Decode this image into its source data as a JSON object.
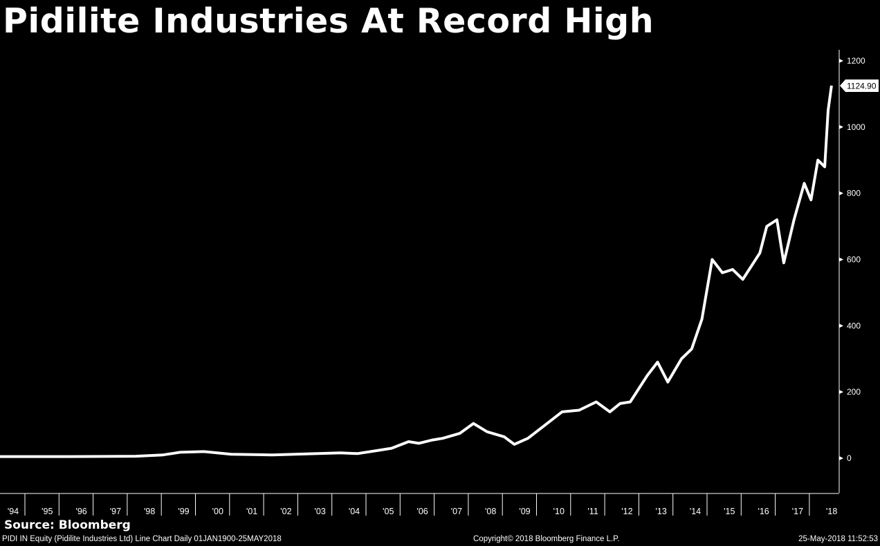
{
  "title": "Pidilite Industries At Record High",
  "source": "Source: Bloomberg",
  "footer": {
    "left": "PIDI IN Equity (Pidilite Industries Ltd) Line Chart  Daily 01JAN1900-25MAY2018",
    "center": "Copyright© 2018 Bloomberg Finance L.P.",
    "right": "25-May-2018 11:52:53"
  },
  "chart_data": {
    "type": "line",
    "title": "Pidilite Industries At Record High",
    "xlabel": "",
    "ylabel": "",
    "ylim": [
      -100,
      1250
    ],
    "yticks": [
      0,
      200,
      400,
      600,
      800,
      1000,
      1200
    ],
    "xticks": [
      "'94",
      "'95",
      "'96",
      "'97",
      "'98",
      "'99",
      "'00",
      "'01",
      "'02",
      "'03",
      "'04",
      "'05",
      "'06",
      "'07",
      "'08",
      "'09",
      "'10",
      "'11",
      "'12",
      "'13",
      "'14",
      "'15",
      "'16",
      "'17",
      "'18"
    ],
    "last_value_label": "1124.90",
    "line_color": "#ffffff",
    "series": [
      {
        "name": "PIDI IN Equity",
        "x": [
          1994,
          1996,
          1998,
          1998.8,
          1999.3,
          2000,
          2000.8,
          2002,
          2003,
          2004,
          2004.5,
          2005,
          2005.5,
          2006,
          2006.3,
          2006.7,
          2007,
          2007.5,
          2007.9,
          2008.3,
          2008.8,
          2009.1,
          2009.5,
          2010,
          2010.5,
          2011,
          2011.5,
          2011.9,
          2012.2,
          2012.5,
          2013,
          2013.3,
          2013.6,
          2014,
          2014.3,
          2014.6,
          2014.9,
          2015.2,
          2015.5,
          2015.8,
          2016.3,
          2016.5,
          2016.8,
          2017.0,
          2017.3,
          2017.6,
          2017.8,
          2018.0,
          2018.2,
          2018.3,
          2018.4
        ],
        "y": [
          5,
          5,
          6,
          10,
          18,
          20,
          12,
          10,
          13,
          16,
          14,
          22,
          30,
          50,
          45,
          55,
          60,
          75,
          105,
          80,
          65,
          42,
          60,
          100,
          140,
          145,
          170,
          140,
          165,
          170,
          250,
          290,
          230,
          300,
          330,
          420,
          600,
          560,
          570,
          540,
          620,
          700,
          720,
          590,
          720,
          830,
          780,
          900,
          880,
          1050,
          1124.9
        ]
      }
    ]
  }
}
